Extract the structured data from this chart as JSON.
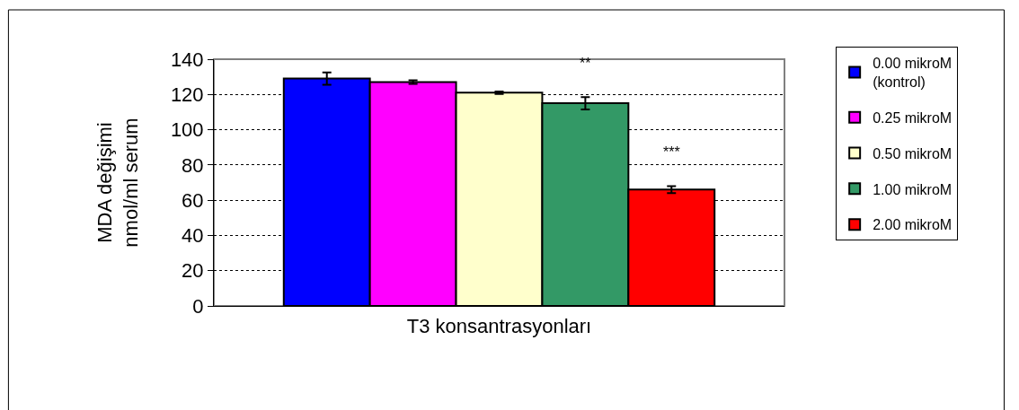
{
  "chart_data": {
    "type": "bar",
    "xlabel": "T3 konsantrasyonları",
    "ylabel": "MDA değişimi\nnmol/ml serum",
    "categories": [
      null
    ],
    "series": [
      {
        "name": "0.00 mikroM\n(kontrol)",
        "color": "#0000ff",
        "values": [
          129
        ],
        "errors": [
          3.5
        ]
      },
      {
        "name": "0.25 mikroM",
        "color": "#ff00ff",
        "values": [
          127
        ],
        "errors": [
          1
        ]
      },
      {
        "name": "0.50 mikroM",
        "color": "#ffffcc",
        "values": [
          121
        ],
        "errors": [
          0.7
        ]
      },
      {
        "name": "1.00 mikroM",
        "color": "#339966",
        "values": [
          115
        ],
        "errors": [
          3.5
        ]
      },
      {
        "name": "2.00 mikroM",
        "color": "#ff0000",
        "values": [
          66
        ],
        "errors": [
          2
        ]
      }
    ],
    "annotations": [
      "**",
      "***"
    ],
    "ylim": [
      0,
      140
    ],
    "yticks": [
      0,
      20,
      40,
      60,
      80,
      100,
      120,
      140
    ],
    "grid": "y",
    "legend": "right"
  }
}
